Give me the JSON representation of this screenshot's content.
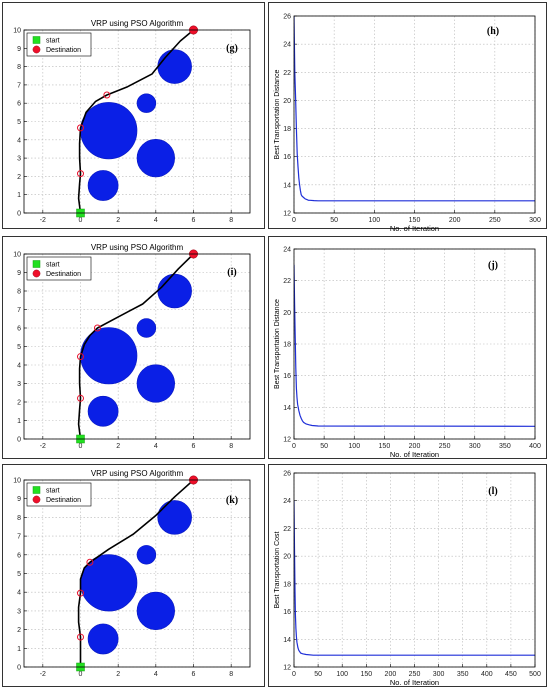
{
  "chart_data": [
    {
      "type": "scatter",
      "panel": "g",
      "title": "VRP using PSO Algorithm",
      "panel_label": "(g)",
      "xlim": [
        -3,
        9
      ],
      "ylim": [
        0,
        10
      ],
      "xticks": [
        -2,
        0,
        2,
        4,
        6,
        8
      ],
      "yticks": [
        0,
        1,
        2,
        3,
        4,
        5,
        6,
        7,
        8,
        9,
        10
      ],
      "grid": true,
      "legend": {
        "position": "top-left",
        "entries": [
          "start",
          "Destination"
        ]
      },
      "start": [
        0,
        0
      ],
      "destination": [
        6,
        10
      ],
      "obstacles": [
        {
          "x": 1.5,
          "y": 4.5,
          "r": 1.5
        },
        {
          "x": 1.2,
          "y": 1.5,
          "r": 0.8
        },
        {
          "x": 4.0,
          "y": 3.0,
          "r": 1.0
        },
        {
          "x": 3.5,
          "y": 6.0,
          "r": 0.5
        },
        {
          "x": 5.0,
          "y": 8.0,
          "r": 0.9
        }
      ],
      "waypoints": [
        [
          0,
          2.15
        ],
        [
          0,
          4.65
        ],
        [
          1.4,
          6.45
        ]
      ],
      "path": [
        [
          0,
          0
        ],
        [
          -0.1,
          0.8
        ],
        [
          -0.05,
          1.6
        ],
        [
          0,
          2.15
        ],
        [
          -0.05,
          3.0
        ],
        [
          -0.05,
          3.8
        ],
        [
          0,
          4.65
        ],
        [
          0.3,
          5.5
        ],
        [
          0.8,
          6.1
        ],
        [
          1.4,
          6.45
        ],
        [
          2.5,
          6.9
        ],
        [
          3.8,
          7.6
        ],
        [
          4.5,
          8.5
        ],
        [
          5.3,
          9.4
        ],
        [
          6,
          10
        ]
      ]
    },
    {
      "type": "line",
      "panel": "h",
      "panel_label": "(h)",
      "xlabel": "No. of Iteration",
      "ylabel": "Best Transportation Distance",
      "xlim": [
        0,
        300
      ],
      "ylim": [
        12,
        26
      ],
      "xticks": [
        0,
        50,
        100,
        150,
        200,
        250,
        300
      ],
      "yticks": [
        12,
        14,
        16,
        18,
        20,
        22,
        24,
        26
      ],
      "grid": true,
      "series": [
        {
          "x": [
            0,
            1,
            2,
            3,
            4,
            5,
            6,
            7,
            8,
            9,
            10,
            12,
            14,
            16,
            18,
            20,
            25,
            30,
            300
          ],
          "values": [
            26,
            22,
            20.2,
            18,
            16.2,
            15.3,
            14.5,
            14.0,
            13.6,
            13.3,
            13.2,
            13.1,
            13.0,
            12.95,
            12.9,
            12.9,
            12.88,
            12.87,
            12.87
          ]
        }
      ]
    },
    {
      "type": "scatter",
      "panel": "i",
      "title": "VRP using PSO Algorithm",
      "panel_label": "(i)",
      "xlim": [
        -3,
        9
      ],
      "ylim": [
        0,
        10
      ],
      "xticks": [
        -2,
        0,
        2,
        4,
        6,
        8
      ],
      "yticks": [
        0,
        1,
        2,
        3,
        4,
        5,
        6,
        7,
        8,
        9,
        10
      ],
      "grid": true,
      "legend": {
        "position": "top-left",
        "entries": [
          "start",
          "Destination"
        ]
      },
      "start": [
        0,
        0
      ],
      "destination": [
        6,
        10
      ],
      "obstacles": [
        {
          "x": 1.5,
          "y": 4.5,
          "r": 1.5
        },
        {
          "x": 1.2,
          "y": 1.5,
          "r": 0.8
        },
        {
          "x": 4.0,
          "y": 3.0,
          "r": 1.0
        },
        {
          "x": 3.5,
          "y": 6.0,
          "r": 0.5
        },
        {
          "x": 5.0,
          "y": 8.0,
          "r": 0.9
        }
      ],
      "waypoints": [
        [
          0,
          2.2
        ],
        [
          0,
          4.45
        ],
        [
          0.9,
          6.0
        ]
      ],
      "path": [
        [
          0,
          0
        ],
        [
          -0.1,
          0.8
        ],
        [
          -0.05,
          1.6
        ],
        [
          0,
          2.2
        ],
        [
          -0.05,
          3.0
        ],
        [
          -0.05,
          3.8
        ],
        [
          0,
          4.45
        ],
        [
          0.2,
          5.1
        ],
        [
          0.5,
          5.6
        ],
        [
          0.9,
          6.0
        ],
        [
          2.0,
          6.6
        ],
        [
          3.3,
          7.3
        ],
        [
          4.3,
          8.2
        ],
        [
          5.2,
          9.2
        ],
        [
          6,
          10
        ]
      ]
    },
    {
      "type": "line",
      "panel": "j",
      "panel_label": "(j)",
      "xlabel": "No. of Iteration",
      "ylabel": "Best Transportation Distance",
      "xlim": [
        0,
        400
      ],
      "ylim": [
        12,
        24
      ],
      "xticks": [
        0,
        50,
        100,
        150,
        200,
        250,
        300,
        350,
        400
      ],
      "yticks": [
        12,
        14,
        16,
        18,
        20,
        22,
        24
      ],
      "grid": true,
      "series": [
        {
          "x": [
            0,
            1,
            2,
            3,
            4,
            5,
            6,
            8,
            10,
            12,
            14,
            16,
            20,
            25,
            30,
            40,
            400
          ],
          "values": [
            23,
            20.5,
            18.5,
            16.5,
            15.2,
            14.6,
            14.2,
            13.8,
            13.5,
            13.3,
            13.15,
            13.05,
            12.95,
            12.9,
            12.85,
            12.82,
            12.8
          ]
        }
      ]
    },
    {
      "type": "scatter",
      "panel": "k",
      "title": "VRP using PSO Algorithm",
      "panel_label": "(k)",
      "xlim": [
        -3,
        9
      ],
      "ylim": [
        0,
        10
      ],
      "xticks": [
        -2,
        0,
        2,
        4,
        6,
        8
      ],
      "yticks": [
        0,
        1,
        2,
        3,
        4,
        5,
        6,
        7,
        8,
        9,
        10
      ],
      "grid": true,
      "legend": {
        "position": "top-left",
        "entries": [
          "start",
          "Destination"
        ]
      },
      "start": [
        0,
        0
      ],
      "destination": [
        6,
        10
      ],
      "obstacles": [
        {
          "x": 1.5,
          "y": 4.5,
          "r": 1.5
        },
        {
          "x": 1.2,
          "y": 1.5,
          "r": 0.8
        },
        {
          "x": 4.0,
          "y": 3.0,
          "r": 1.0
        },
        {
          "x": 3.5,
          "y": 6.0,
          "r": 0.5
        },
        {
          "x": 5.0,
          "y": 8.0,
          "r": 0.9
        }
      ],
      "waypoints": [
        [
          0,
          1.6
        ],
        [
          0,
          3.95
        ],
        [
          0.5,
          5.6
        ]
      ],
      "path": [
        [
          0,
          0
        ],
        [
          0,
          0.8
        ],
        [
          0,
          1.6
        ],
        [
          -0.1,
          2.4
        ],
        [
          -0.1,
          3.2
        ],
        [
          0,
          3.95
        ],
        [
          0,
          4.7
        ],
        [
          0.2,
          5.3
        ],
        [
          0.5,
          5.6
        ],
        [
          1.5,
          6.3
        ],
        [
          2.8,
          7.1
        ],
        [
          4.0,
          8.1
        ],
        [
          5.0,
          9.1
        ],
        [
          6,
          10
        ]
      ]
    },
    {
      "type": "line",
      "panel": "l",
      "panel_label": "(l)",
      "xlabel": "No. of Iteration",
      "ylabel": "Best Transportation Cost",
      "xlim": [
        0,
        500
      ],
      "ylim": [
        12,
        26
      ],
      "xticks": [
        0,
        50,
        100,
        150,
        200,
        250,
        300,
        350,
        400,
        450,
        500
      ],
      "yticks": [
        12,
        14,
        16,
        18,
        20,
        22,
        24,
        26
      ],
      "grid": true,
      "series": [
        {
          "x": [
            0,
            1,
            2,
            3,
            4,
            5,
            6,
            8,
            10,
            14,
            18,
            25,
            40,
            500
          ],
          "values": [
            24,
            20.5,
            17.5,
            15.8,
            14.8,
            14.2,
            13.8,
            13.4,
            13.2,
            13.0,
            12.95,
            12.9,
            12.85,
            12.85
          ]
        }
      ]
    }
  ]
}
